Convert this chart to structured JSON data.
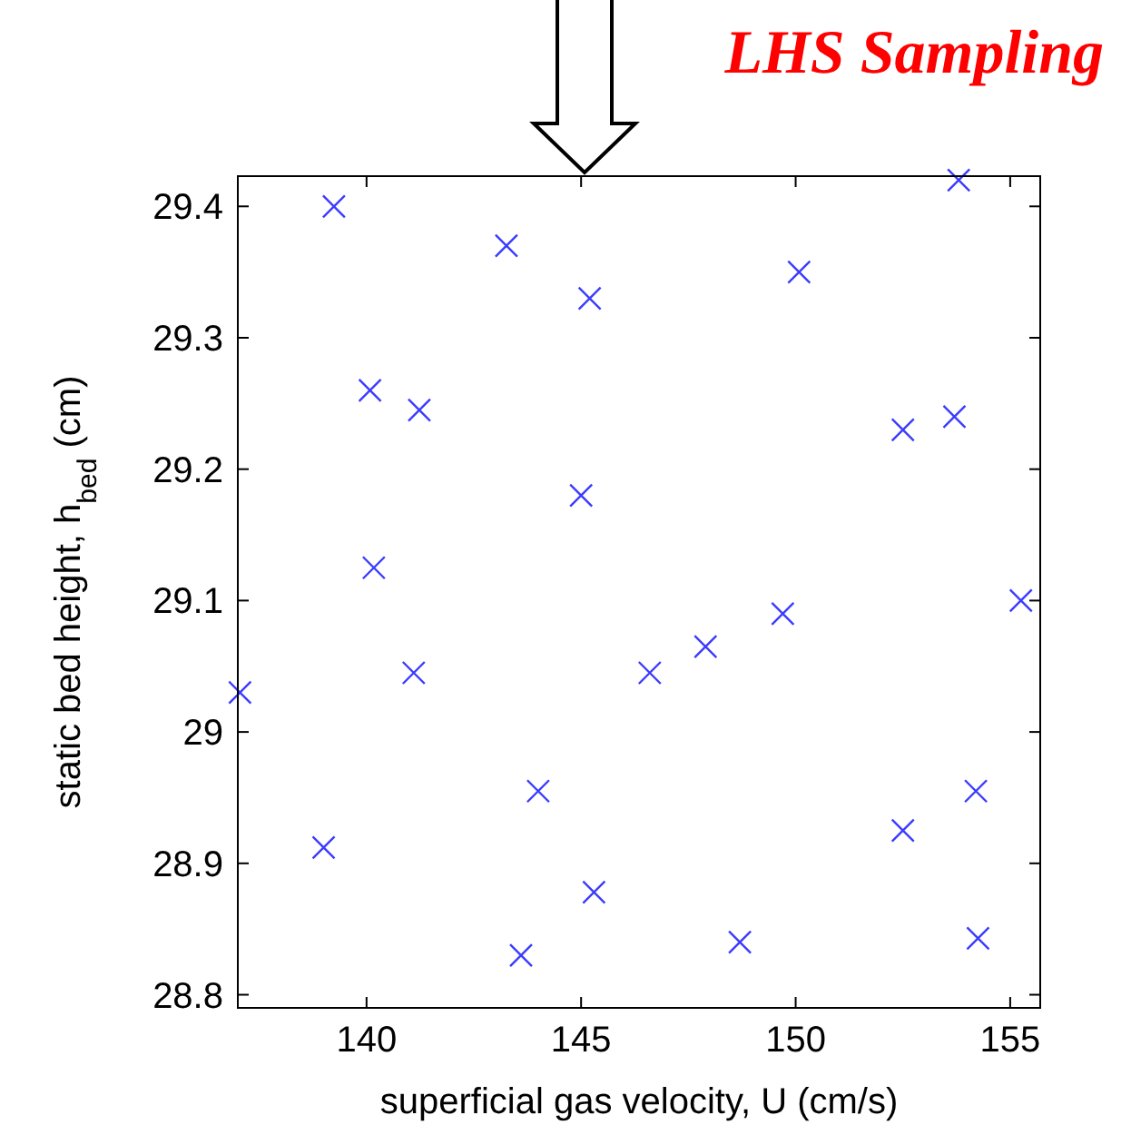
{
  "chart_data": {
    "type": "scatter",
    "title": "LHS Sampling",
    "xlabel": "superficial gas velocity, U (cm/s)",
    "ylabel": "static bed height, h$_{bed}$ (cm)",
    "xlim": [
      137,
      155.7
    ],
    "ylim": [
      28.79,
      29.423
    ],
    "xticks": [
      140,
      145,
      150,
      155
    ],
    "yticks": [
      28.8,
      28.9,
      29,
      29.1,
      29.2,
      29.3,
      29.4
    ],
    "marker": "cross",
    "grid": false,
    "series": [
      {
        "color": "#3b3bff",
        "x": [
          139.24,
          143.26,
          145.2,
          140.08,
          141.23,
          150.08,
          153.8,
          145.0,
          152.5,
          153.7,
          140.17,
          155.25,
          149.7,
          147.9,
          146.6,
          141.1,
          137.05,
          144.0,
          154.2,
          152.5,
          139.0,
          145.3,
          143.6,
          148.7,
          154.25
        ],
        "values": [
          29.4,
          29.37,
          29.33,
          29.26,
          29.245,
          29.35,
          29.42,
          29.18,
          29.23,
          29.24,
          29.125,
          29.1,
          29.09,
          29.065,
          29.045,
          29.045,
          29.03,
          28.955,
          28.955,
          28.925,
          28.912,
          28.878,
          28.83,
          28.84,
          28.843
        ]
      }
    ]
  }
}
